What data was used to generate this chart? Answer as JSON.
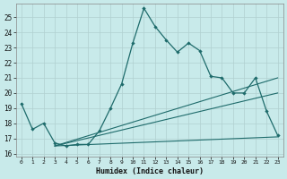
{
  "xlabel": "Humidex (Indice chaleur)",
  "bg_color": "#c8eaea",
  "grid_color": "#b0d0d0",
  "line_color": "#1e6b6b",
  "xlim": [
    -0.5,
    23.5
  ],
  "ylim": [
    15.8,
    25.9
  ],
  "xticks": [
    0,
    1,
    2,
    3,
    4,
    5,
    6,
    7,
    8,
    9,
    10,
    11,
    12,
    13,
    14,
    15,
    16,
    17,
    18,
    19,
    20,
    21,
    22,
    23
  ],
  "yticks": [
    16,
    17,
    18,
    19,
    20,
    21,
    22,
    23,
    24,
    25
  ],
  "main_line": {
    "x": [
      0,
      1,
      2,
      3,
      4,
      5,
      6,
      7,
      8,
      9,
      10,
      11,
      12,
      13,
      14,
      15,
      16,
      17,
      18,
      19,
      20,
      21,
      22,
      23
    ],
    "y": [
      19.3,
      17.6,
      18.0,
      16.7,
      16.5,
      16.6,
      16.6,
      17.5,
      19.0,
      20.6,
      23.3,
      25.6,
      24.4,
      23.5,
      22.7,
      23.3,
      22.8,
      21.1,
      21.0,
      20.0,
      20.0,
      21.0,
      18.8,
      17.2
    ]
  },
  "fan_lines": [
    {
      "x": [
        3,
        23
      ],
      "y": [
        16.5,
        21.0
      ]
    },
    {
      "x": [
        3,
        23
      ],
      "y": [
        16.5,
        20.0
      ]
    },
    {
      "x": [
        3,
        23
      ],
      "y": [
        16.5,
        17.1
      ]
    }
  ]
}
